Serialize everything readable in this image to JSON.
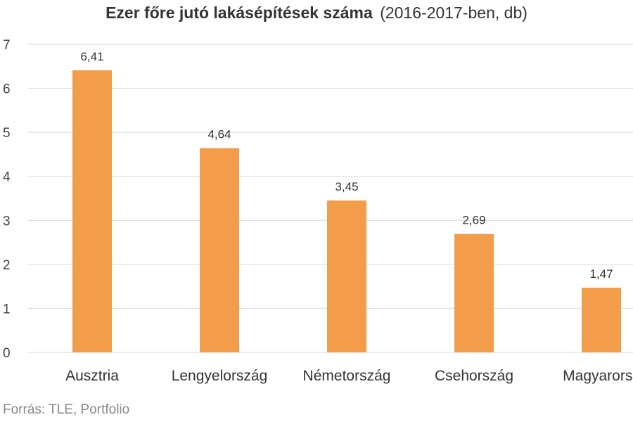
{
  "chart_data": {
    "type": "bar",
    "title": "Ezer főre jutó lakásépítések száma",
    "subtitle": "(2016-2017-ben, db)",
    "categories": [
      "Ausztria",
      "Lengyelország",
      "Németország",
      "Csehország",
      "Magyarorsz"
    ],
    "values": [
      6.41,
      4.64,
      3.45,
      2.69,
      1.47
    ],
    "value_labels": [
      "6,41",
      "4,64",
      "3,45",
      "2,69",
      "1,47"
    ],
    "ylim": [
      0,
      7
    ],
    "yticks": [
      0,
      1,
      2,
      3,
      4,
      5,
      6,
      7
    ],
    "grid": true,
    "bar_color": "#f39c4a",
    "grid_color": "#d9d9d9",
    "source": "Forrás: TLE, Portfolio"
  }
}
